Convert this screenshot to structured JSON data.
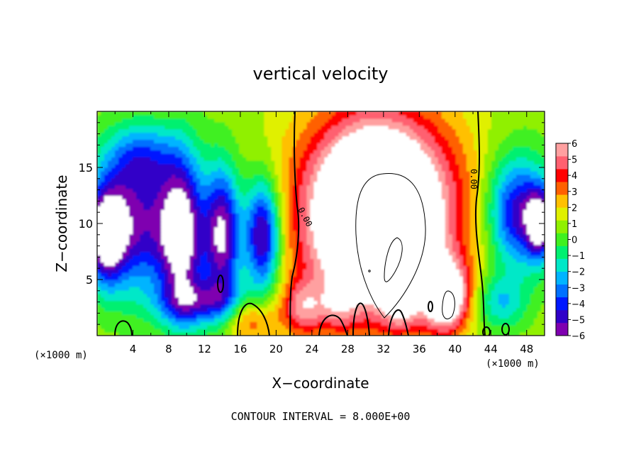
{
  "chart_data": {
    "type": "heatmap",
    "title": "vertical velocity",
    "xlabel": "X−coordinate",
    "ylabel": "Z−coordinate",
    "x_unit_left": "(×1000 m)",
    "x_unit_right": "(×1000 m)",
    "xlim": [
      0,
      50
    ],
    "ylim": [
      0,
      20
    ],
    "x_ticks": [
      4,
      8,
      12,
      16,
      20,
      24,
      28,
      32,
      36,
      40,
      44,
      48
    ],
    "y_ticks": [
      5,
      10,
      15
    ],
    "colorbar": {
      "labels": [
        "6",
        "5",
        "4",
        "3",
        "2",
        "1",
        "0",
        "−1",
        "−2",
        "−3",
        "−4",
        "−5",
        "−6"
      ],
      "min": -6,
      "max": 6,
      "colors": [
        "#7f00b0",
        "#3000c8",
        "#0018ff",
        "#0070ff",
        "#00b4ff",
        "#00e8c8",
        "#00f070",
        "#40f020",
        "#90f000",
        "#e0f000",
        "#ffc000",
        "#ff6000",
        "#ff0000",
        "#ff6070",
        "#ffa0a0"
      ]
    },
    "contour_labels": [
      "0.00",
      "0.00"
    ],
    "footer": "CONTOUR INTERVAL = 8.000E+00",
    "blobs": [
      {
        "x": 31.5,
        "z": 11,
        "rx": 9,
        "rz": 9,
        "v": 9
      },
      {
        "x": 31,
        "z": 10.5,
        "rx": 5,
        "rz": 6,
        "v": 6
      },
      {
        "x": 39,
        "z": 3.5,
        "rx": 2.5,
        "rz": 3,
        "v": 7
      },
      {
        "x": 23,
        "z": 2.5,
        "rx": 2.5,
        "rz": 2.5,
        "v": 3.5
      },
      {
        "x": 34,
        "z": 2.5,
        "rx": 2,
        "rz": 2,
        "v": 2.5
      },
      {
        "x": 27,
        "z": 2.5,
        "rx": 2,
        "rz": 2,
        "v": 2
      },
      {
        "x": 17,
        "z": 1.5,
        "rx": 3,
        "rz": 2,
        "v": 3
      },
      {
        "x": 4,
        "z": 10,
        "rx": 5,
        "rz": 6,
        "v": -6
      },
      {
        "x": 1,
        "z": 9,
        "rx": 2,
        "rz": 4,
        "v": -6
      },
      {
        "x": 9.5,
        "z": 9,
        "rx": 2.5,
        "rz": 7,
        "v": -7
      },
      {
        "x": 14,
        "z": 9,
        "rx": 2,
        "rz": 6,
        "v": -7
      },
      {
        "x": 18.5,
        "z": 9,
        "rx": 2,
        "rz": 5,
        "v": -7
      },
      {
        "x": 47,
        "z": 11,
        "rx": 3.5,
        "rz": 5,
        "v": -6
      },
      {
        "x": 49.5,
        "z": 10,
        "rx": 1.5,
        "rz": 3,
        "v": -6
      },
      {
        "x": 12,
        "z": 3,
        "rx": 5,
        "rz": 2,
        "v": -4
      },
      {
        "x": 5,
        "z": 16,
        "rx": 4,
        "rz": 3,
        "v": -3
      },
      {
        "x": 45,
        "z": 3,
        "rx": 3,
        "rz": 2.5,
        "v": -3
      }
    ]
  }
}
